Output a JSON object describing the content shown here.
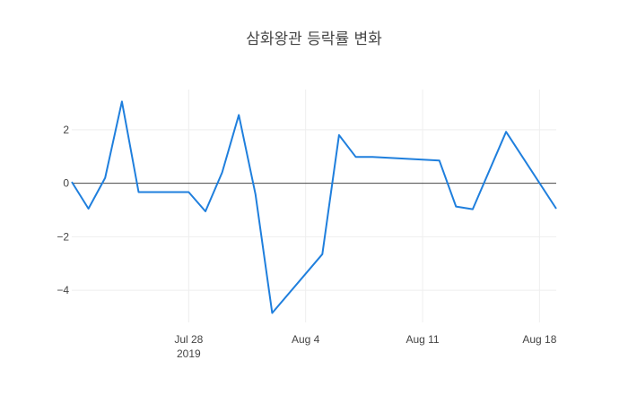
{
  "chart_data": {
    "type": "line",
    "title": "삼화왕관 등락률 변화",
    "xlabel": "",
    "ylabel": "",
    "x_range": [
      "2019-07-21",
      "2019-08-19"
    ],
    "ylim": [
      -5.2,
      3.5
    ],
    "grid": true,
    "zeroline": true,
    "line_color": "#1f7fdd",
    "x_ticks": [
      {
        "date": "2019-07-28",
        "label": "Jul 28",
        "sublabel": "2019"
      },
      {
        "date": "2019-08-04",
        "label": "Aug 4",
        "sublabel": ""
      },
      {
        "date": "2019-08-11",
        "label": "Aug 11",
        "sublabel": ""
      },
      {
        "date": "2019-08-18",
        "label": "Aug 18",
        "sublabel": ""
      }
    ],
    "y_ticks": [
      {
        "value": 2,
        "label": "2"
      },
      {
        "value": 0,
        "label": "0"
      },
      {
        "value": -2,
        "label": "−2"
      },
      {
        "value": -4,
        "label": "−4"
      }
    ],
    "series": [
      {
        "x": [
          "2019-07-21",
          "2019-07-22",
          "2019-07-23",
          "2019-07-24",
          "2019-07-25",
          "2019-07-26",
          "2019-07-27",
          "2019-07-28",
          "2019-07-29",
          "2019-07-30",
          "2019-07-31",
          "2019-08-01",
          "2019-08-02",
          "2019-08-05",
          "2019-08-06",
          "2019-08-07",
          "2019-08-08",
          "2019-08-12",
          "2019-08-13",
          "2019-08-14",
          "2019-08-16",
          "2019-08-19"
        ],
        "y": [
          0.05,
          -0.95,
          0.2,
          3.05,
          -0.33,
          -0.33,
          -0.33,
          -0.33,
          -1.05,
          0.4,
          2.55,
          -0.42,
          -4.85,
          -2.65,
          1.8,
          0.98,
          0.98,
          0.85,
          -0.87,
          -0.97,
          1.92,
          -0.95
        ]
      }
    ]
  }
}
